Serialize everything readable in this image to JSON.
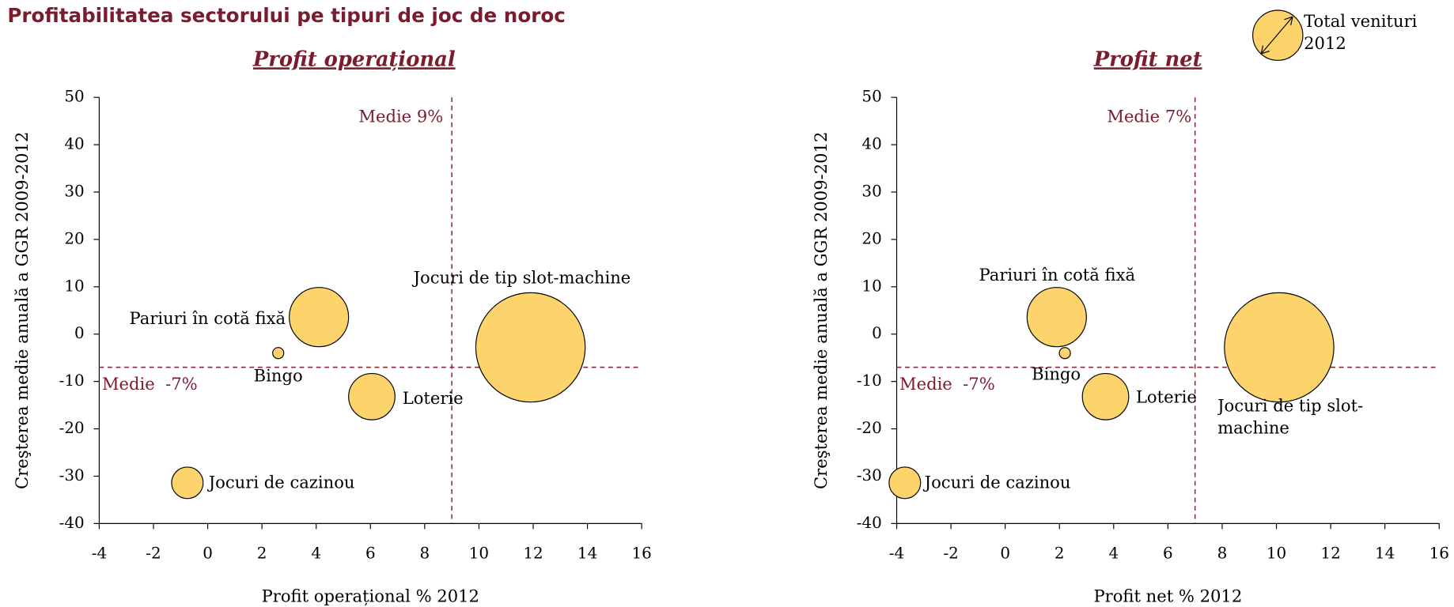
{
  "title": "Profitabilitatea sectorului pe tipuri de joc de noroc",
  "legend": {
    "label": "Total venituri 2012"
  },
  "chart_data": [
    {
      "type": "bubble",
      "title": "Profit operațional",
      "x_label": "Profit operațional % 2012",
      "y_label": "Creşterea medie anuală a GGR 2009-2012",
      "categories": [
        "Jocuri de tip slot-machine",
        "Pariuri în cotă fixă",
        "Bingo",
        "Loterie",
        "Jocuri de cazinou"
      ],
      "x": [
        11.9,
        4.1,
        2.6,
        6.05,
        -0.75
      ],
      "values": [
        -2.8,
        3.6,
        -4,
        -13.2,
        -31.4
      ],
      "sizes": [
        3481,
        1024,
        36,
        625,
        289
      ],
      "color": "#fdd46b",
      "xlim": [
        -4,
        16
      ],
      "ylim": [
        -40,
        50
      ],
      "xticks": [
        -4,
        -2,
        0,
        2,
        4,
        6,
        8,
        10,
        12,
        14,
        16
      ],
      "yticks": [
        -40,
        -30,
        -20,
        -10,
        0,
        10,
        20,
        30,
        40,
        50
      ],
      "median_x": 9,
      "median_x_label": "Medie 9%",
      "median_y": -7,
      "median_y_label": "Medie  -7%"
    },
    {
      "type": "bubble",
      "title": "Profit net",
      "x_label": "Profit net % 2012",
      "y_label": "Creşterea medie anuală a GGR 2009-2012",
      "categories": [
        "Jocuri de tip slot-machine",
        "Pariuri în cotă fixă",
        "Bingo",
        "Loterie",
        "Jocuri de cazinou"
      ],
      "x": [
        10.1,
        1.9,
        2.2,
        3.7,
        -3.7
      ],
      "values": [
        -2.8,
        3.6,
        -4,
        -13.2,
        -31.4
      ],
      "sizes": [
        3481,
        1024,
        36,
        625,
        289
      ],
      "color": "#fdd46b",
      "xlim": [
        -4,
        16
      ],
      "ylim": [
        -40,
        50
      ],
      "xticks": [
        -4,
        -2,
        0,
        2,
        4,
        6,
        8,
        10,
        12,
        14,
        16
      ],
      "yticks": [
        -40,
        -30,
        -20,
        -10,
        0,
        10,
        20,
        30,
        40,
        50
      ],
      "median_x": 7,
      "median_x_label": "Medie 7%",
      "median_y": -7,
      "median_y_label": "Medie  -7%"
    }
  ]
}
